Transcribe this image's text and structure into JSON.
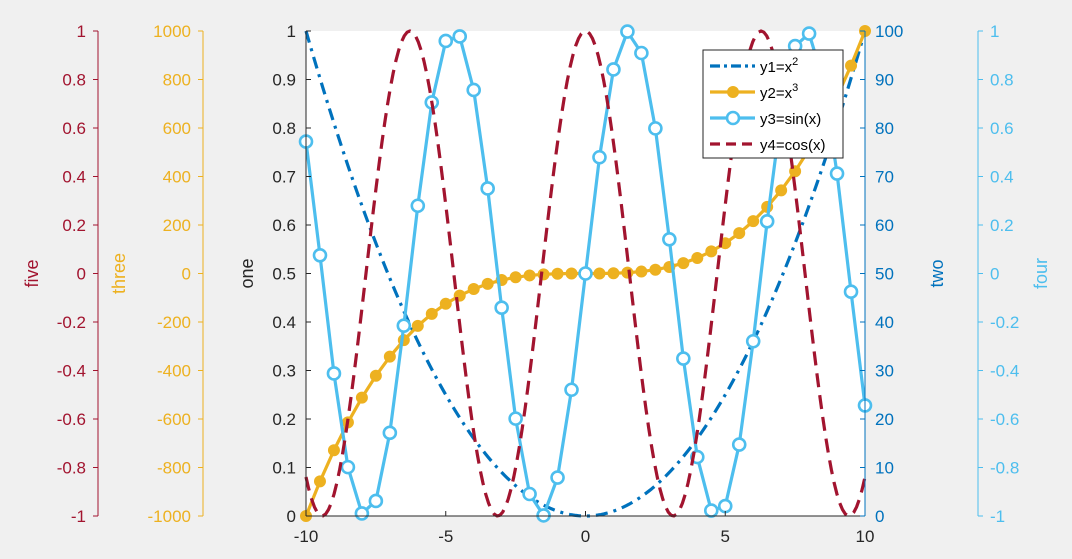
{
  "chart_data": {
    "type": "line",
    "xlim": [
      -10,
      10
    ],
    "xticks": [
      -10,
      -5,
      0,
      5,
      10
    ],
    "grid": false,
    "legend_position": "top-right",
    "colors": {
      "background": "#f0f0f0",
      "plot_area": "#ffffff",
      "blue": "#0072bd",
      "orange": "#edb120",
      "lightblue": "#4dbeee",
      "red": "#a2142f"
    },
    "axes": [
      {
        "id": "one",
        "label": "one",
        "side": "left",
        "ylim": [
          0,
          1
        ],
        "ticks": [
          0,
          0.1,
          0.2,
          0.3,
          0.4,
          0.5,
          0.6,
          0.7,
          0.8,
          0.9,
          1
        ],
        "color": "#262626"
      },
      {
        "id": "two",
        "label": "two",
        "side": "right",
        "ylim": [
          0,
          100
        ],
        "ticks": [
          0,
          10,
          20,
          30,
          40,
          50,
          60,
          70,
          80,
          90,
          100
        ],
        "color": "#0072bd"
      },
      {
        "id": "three",
        "label": "three",
        "side": "left-outer",
        "ylim": [
          -1000,
          1000
        ],
        "ticks": [
          -1000,
          -800,
          -600,
          -400,
          -200,
          0,
          200,
          400,
          600,
          800,
          1000
        ],
        "color": "#edb120"
      },
      {
        "id": "four",
        "label": "four",
        "side": "right-outer",
        "ylim": [
          -1,
          1
        ],
        "ticks": [
          -1,
          -0.8,
          -0.6,
          -0.4,
          -0.2,
          0,
          0.2,
          0.4,
          0.6,
          0.8,
          1
        ],
        "color": "#4dbeee"
      },
      {
        "id": "five",
        "label": "five",
        "side": "left-outermost",
        "ylim": [
          -1,
          1
        ],
        "ticks": [
          -1,
          -0.8,
          -0.6,
          -0.4,
          -0.2,
          0,
          0.2,
          0.4,
          0.6,
          0.8,
          1
        ],
        "color": "#a2142f"
      }
    ],
    "series": [
      {
        "name_base": "y1=x",
        "name_sup": "2",
        "function": "x^2",
        "axis": "two",
        "color": "#0072bd",
        "style": "dash-dot",
        "marker": "none",
        "x_range": [
          -10,
          10
        ],
        "samples": 200
      },
      {
        "name_base": "y2=x",
        "name_sup": "3",
        "function": "x^3",
        "axis": "three",
        "color": "#edb120",
        "style": "solid",
        "marker": "filled-circle",
        "x_range": [
          -10,
          10
        ],
        "samples": 41
      },
      {
        "name_base": "y3=sin(x)",
        "name_sup": "",
        "function": "sin(x)",
        "axis": "four",
        "color": "#4dbeee",
        "style": "solid",
        "marker": "open-circle",
        "x_range": [
          -10,
          10
        ],
        "samples": 41
      },
      {
        "name_base": "y4=cos(x)",
        "name_sup": "",
        "function": "cos(x)",
        "axis": "five",
        "color": "#a2142f",
        "style": "dashed",
        "marker": "none",
        "x_range": [
          -10,
          10
        ],
        "samples": 200
      }
    ]
  }
}
